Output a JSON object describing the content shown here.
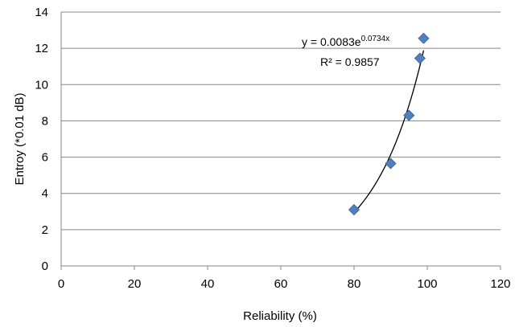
{
  "chart_data": {
    "type": "scatter",
    "xlabel": "Reliability (%)",
    "ylabel": "Entroy (*0.01 dB)",
    "xlim": [
      0,
      120
    ],
    "ylim": [
      0,
      14
    ],
    "x_ticks": [
      "0",
      "20",
      "40",
      "60",
      "80",
      "100",
      "120"
    ],
    "y_ticks": [
      "0",
      "2",
      "4",
      "6",
      "8",
      "10",
      "12",
      "14"
    ],
    "grid": "horizontal",
    "points": [
      {
        "x": 80,
        "y": 3.1
      },
      {
        "x": 90,
        "y": 5.65
      },
      {
        "x": 95,
        "y": 8.3
      },
      {
        "x": 98,
        "y": 11.45
      },
      {
        "x": 99,
        "y": 12.55
      }
    ],
    "trendline": {
      "type": "exponential",
      "a": 0.0083,
      "b": 0.0734,
      "x_range": [
        80,
        99
      ],
      "equation_base": "y = 0.0083e",
      "equation_exponent": "0.0734x",
      "r_squared_label": "R² = 0.9857"
    },
    "marker_color": "#4f81bd",
    "marker_stroke": "#385d8a"
  }
}
